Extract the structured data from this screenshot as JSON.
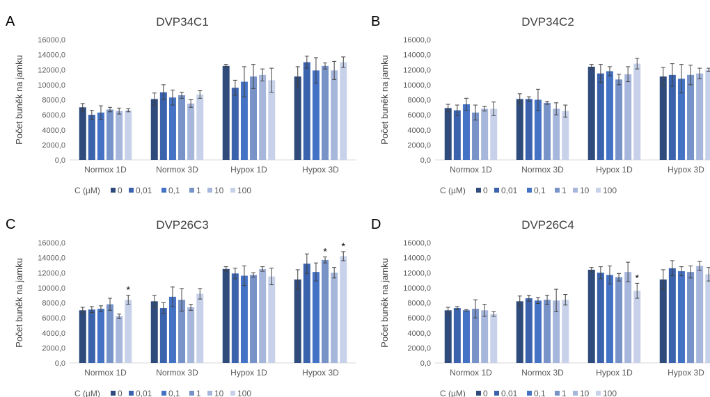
{
  "colors": [
    "#2f4b7c",
    "#3b63ad",
    "#4472c4",
    "#7893c8",
    "#a7b7dc",
    "#c7d2ea"
  ],
  "legend_title": "C (µM)",
  "significance_marker": "*",
  "chart_data": [
    {
      "type": "bar",
      "panel_letter": "A",
      "title": "DVP34C1",
      "ylabel": "Počet buněk na jamku",
      "ylim": [
        0,
        16000
      ],
      "yticks": [
        "0,0",
        "2000,0",
        "4000,0",
        "6000,0",
        "8000,0",
        "10000,0",
        "12000,0",
        "14000,0",
        "16000,0"
      ],
      "categories": [
        "Normox 1D",
        "Normox 3D",
        "Hypox 1D",
        "Hypox 3D"
      ],
      "legend": "bottom",
      "series": [
        {
          "name": "0",
          "values": [
            7000,
            8100,
            12500,
            11100
          ],
          "errors": [
            500,
            800,
            200,
            1300
          ],
          "significant": [
            false,
            false,
            false,
            false
          ]
        },
        {
          "name": "0,01",
          "values": [
            6000,
            9000,
            9600,
            13000
          ],
          "errors": [
            600,
            1000,
            1000,
            800
          ],
          "significant": [
            false,
            false,
            false,
            false
          ]
        },
        {
          "name": "0,1",
          "values": [
            6300,
            8300,
            10400,
            11900
          ],
          "errors": [
            900,
            1000,
            2000,
            1700
          ],
          "significant": [
            false,
            false,
            false,
            false
          ]
        },
        {
          "name": "1",
          "values": [
            6700,
            8600,
            11100,
            12500
          ],
          "errors": [
            300,
            400,
            1600,
            400
          ],
          "significant": [
            false,
            false,
            false,
            false
          ]
        },
        {
          "name": "10",
          "values": [
            6500,
            7500,
            11300,
            11900
          ],
          "errors": [
            400,
            500,
            800,
            1200
          ],
          "significant": [
            false,
            false,
            false,
            false
          ]
        },
        {
          "name": "100",
          "values": [
            6600,
            8700,
            10600,
            13000
          ],
          "errors": [
            200,
            500,
            1600,
            700
          ],
          "significant": [
            false,
            false,
            false,
            false
          ]
        }
      ]
    },
    {
      "type": "bar",
      "panel_letter": "B",
      "title": "DVP34C2",
      "ylabel": "Počet buněk na jamku",
      "ylim": [
        0,
        16000
      ],
      "yticks": [
        "0,0",
        "2000,0",
        "4000,0",
        "6000,0",
        "8000,0",
        "10000,0",
        "12000,0",
        "14000,0",
        "16000,0"
      ],
      "categories": [
        "Normox 1D",
        "Normox 3D",
        "Hypox 1D",
        "Hypox 3D"
      ],
      "legend": "bottom",
      "series": [
        {
          "name": "0",
          "values": [
            6900,
            8100,
            12400,
            11100
          ],
          "errors": [
            500,
            700,
            300,
            1200
          ],
          "significant": [
            false,
            false,
            false,
            false
          ]
        },
        {
          "name": "0,01",
          "values": [
            6600,
            8100,
            11500,
            11300
          ],
          "errors": [
            700,
            300,
            1200,
            1500
          ],
          "significant": [
            false,
            false,
            false,
            false
          ]
        },
        {
          "name": "0,1",
          "values": [
            7400,
            8000,
            11800,
            10800
          ],
          "errors": [
            800,
            1400,
            600,
            1900
          ],
          "significant": [
            false,
            false,
            false,
            false
          ]
        },
        {
          "name": "1",
          "values": [
            6300,
            7600,
            10700,
            11300
          ],
          "errors": [
            1000,
            200,
            700,
            1300
          ],
          "significant": [
            false,
            false,
            false,
            false
          ]
        },
        {
          "name": "10",
          "values": [
            6800,
            6800,
            11400,
            11500
          ],
          "errors": [
            300,
            800,
            1000,
            700
          ],
          "significant": [
            false,
            false,
            false,
            false
          ]
        },
        {
          "name": "100",
          "values": [
            6800,
            6500,
            12800,
            12000
          ],
          "errors": [
            900,
            800,
            700,
            200
          ],
          "significant": [
            false,
            false,
            false,
            false
          ]
        }
      ]
    },
    {
      "type": "bar",
      "panel_letter": "C",
      "title": "DVP26C3",
      "ylabel": "Počet buněk na jamku",
      "ylim": [
        0,
        16000
      ],
      "yticks": [
        "0,0",
        "2000,0",
        "4000,0",
        "6000,0",
        "8000,0",
        "10000,0",
        "12000,0",
        "14000,0",
        "16000,0"
      ],
      "categories": [
        "Normox 1D",
        "Normox 3D",
        "Hypox 1D",
        "Hypox 3D"
      ],
      "legend": "bottom",
      "series": [
        {
          "name": "0",
          "values": [
            7000,
            8200,
            12500,
            11100
          ],
          "errors": [
            400,
            800,
            300,
            1300
          ],
          "significant": [
            false,
            false,
            false,
            false
          ]
        },
        {
          "name": "0,01",
          "values": [
            7100,
            7300,
            11900,
            13200
          ],
          "errors": [
            400,
            700,
            700,
            1300
          ],
          "significant": [
            false,
            false,
            false,
            false
          ]
        },
        {
          "name": "0,1",
          "values": [
            7200,
            8800,
            11600,
            12100
          ],
          "errors": [
            400,
            1300,
            1300,
            1200
          ],
          "significant": [
            false,
            false,
            false,
            false
          ]
        },
        {
          "name": "1",
          "values": [
            7800,
            8400,
            11700,
            13700
          ],
          "errors": [
            800,
            1500,
            300,
            400
          ],
          "significant": [
            false,
            false,
            false,
            true
          ]
        },
        {
          "name": "10",
          "values": [
            6200,
            7400,
            12500,
            12000
          ],
          "errors": [
            300,
            400,
            300,
            700
          ],
          "significant": [
            false,
            false,
            false,
            false
          ]
        },
        {
          "name": "100",
          "values": [
            8400,
            9200,
            11500,
            14200
          ],
          "errors": [
            600,
            700,
            1100,
            600
          ],
          "significant": [
            true,
            false,
            false,
            true
          ]
        }
      ]
    },
    {
      "type": "bar",
      "panel_letter": "D",
      "title": "DVP26C4",
      "ylabel": "Počet buněk na jamku",
      "ylim": [
        0,
        16000
      ],
      "yticks": [
        "0,0",
        "2000,0",
        "4000,0",
        "6000,0",
        "8000,0",
        "10000,0",
        "12000,0",
        "14000,0",
        "16000,0"
      ],
      "categories": [
        "Normox 1D",
        "Normox 3D",
        "Hypox 1D",
        "Hypox 3D"
      ],
      "legend": "bottom",
      "series": [
        {
          "name": "0",
          "values": [
            7000,
            8200,
            12400,
            11100
          ],
          "errors": [
            400,
            700,
            300,
            1300
          ],
          "significant": [
            false,
            false,
            false,
            false
          ]
        },
        {
          "name": "0,01",
          "values": [
            7300,
            8600,
            12000,
            12600
          ],
          "errors": [
            200,
            400,
            800,
            1000
          ],
          "significant": [
            false,
            false,
            false,
            false
          ]
        },
        {
          "name": "0,1",
          "values": [
            7000,
            8300,
            11700,
            12200
          ],
          "errors": [
            100,
            400,
            1200,
            600
          ],
          "significant": [
            false,
            false,
            false,
            false
          ]
        },
        {
          "name": "1",
          "values": [
            7200,
            8400,
            11400,
            12100
          ],
          "errors": [
            1200,
            600,
            500,
            800
          ],
          "significant": [
            false,
            false,
            false,
            false
          ]
        },
        {
          "name": "10",
          "values": [
            7000,
            8300,
            12100,
            12900
          ],
          "errors": [
            800,
            1500,
            1300,
            600
          ],
          "significant": [
            false,
            false,
            false,
            false
          ]
        },
        {
          "name": "100",
          "values": [
            6500,
            8400,
            9600,
            11800
          ],
          "errors": [
            300,
            700,
            1000,
            900
          ],
          "significant": [
            false,
            false,
            true,
            false
          ]
        }
      ]
    }
  ]
}
